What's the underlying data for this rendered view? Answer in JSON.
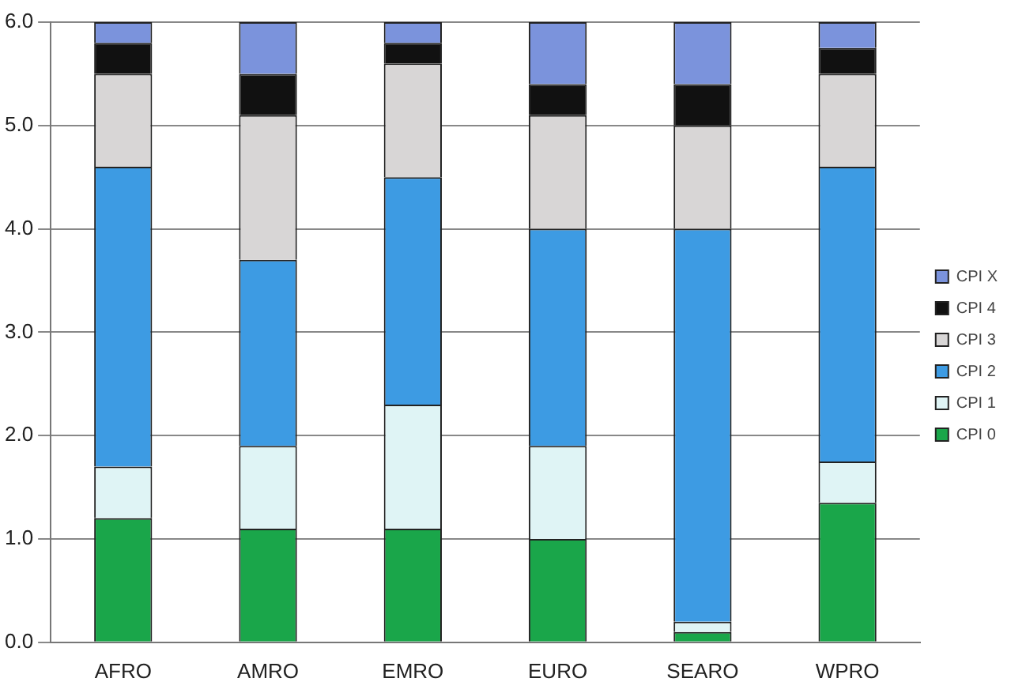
{
  "chart_data": {
    "type": "bar",
    "stacked": true,
    "categories": [
      "AFRO",
      "AMRO",
      "EMRO",
      "EURO",
      "SEARO",
      "WPRO"
    ],
    "series": [
      {
        "name": "CPI 0",
        "color": "#1aa64a",
        "values": [
          1.2,
          1.1,
          1.1,
          1.0,
          0.1,
          1.35
        ]
      },
      {
        "name": "CPI 1",
        "color": "#dff4f5",
        "values": [
          0.5,
          0.8,
          1.2,
          0.9,
          0.1,
          0.4
        ]
      },
      {
        "name": "CPI 2",
        "color": "#3d9be3",
        "values": [
          2.9,
          1.8,
          2.2,
          2.1,
          3.8,
          2.85
        ]
      },
      {
        "name": "CPI 3",
        "color": "#d8d6d6",
        "values": [
          0.9,
          1.4,
          1.1,
          1.1,
          1.0,
          0.9
        ]
      },
      {
        "name": "CPI 4",
        "color": "#111111",
        "values": [
          0.3,
          0.4,
          0.2,
          0.3,
          0.4,
          0.25
        ]
      },
      {
        "name": "CPI X",
        "color": "#7b93dc",
        "values": [
          0.2,
          0.5,
          0.2,
          0.6,
          0.6,
          0.25
        ]
      }
    ],
    "ylim": [
      0,
      6
    ],
    "yticks": [
      {
        "value": 0,
        "label": "0.0"
      },
      {
        "value": 1,
        "label": "1.0"
      },
      {
        "value": 2,
        "label": "2.0"
      },
      {
        "value": 3,
        "label": "3.0"
      },
      {
        "value": 4,
        "label": "4.0"
      },
      {
        "value": 5,
        "label": "5.0"
      },
      {
        "value": 6,
        "label": "6.0"
      }
    ],
    "grid": "y",
    "legend": "right"
  }
}
